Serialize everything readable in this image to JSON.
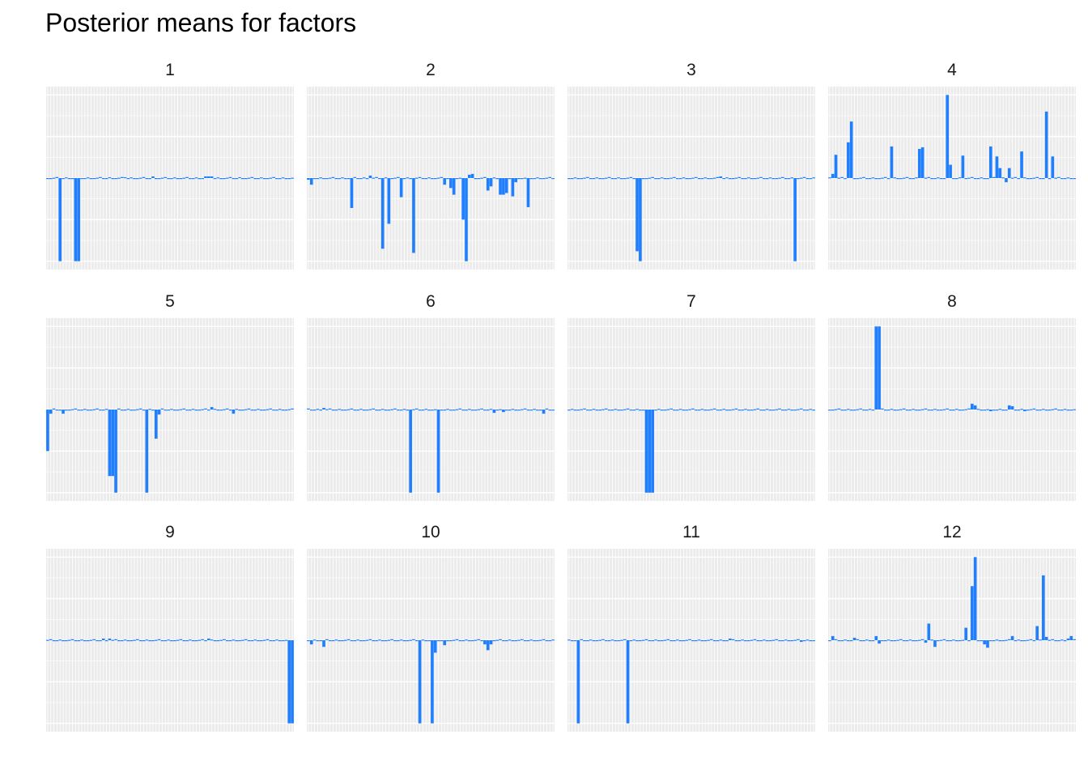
{
  "chart_data": {
    "type": "bar",
    "title": "Posterior means for factors",
    "xlabel": "",
    "ylabel": "",
    "grid": true,
    "legend": "none",
    "bar_color": "#1F7FFF",
    "panel_background": "#EBEBEB",
    "gridline_color": "#FFFFFF",
    "n_categories": 80,
    "facets": [
      {
        "label": "1",
        "ylim": [
          -1.1,
          1.1
        ],
        "bars": [
          [
            4,
            -1.0
          ],
          [
            9,
            -1.0
          ],
          [
            10,
            -1.0
          ],
          [
            20,
            0.01
          ],
          [
            25,
            0.01
          ],
          [
            34,
            0.02
          ],
          [
            51,
            0.02
          ],
          [
            52,
            0.02
          ],
          [
            53,
            0.02
          ],
          [
            62,
            0.01
          ]
        ]
      },
      {
        "label": "2",
        "ylim": [
          -1.1,
          1.1
        ],
        "bars": [
          [
            0,
            -0.02
          ],
          [
            1,
            -0.08
          ],
          [
            14,
            -0.36
          ],
          [
            20,
            0.03
          ],
          [
            24,
            -0.85
          ],
          [
            26,
            -0.55
          ],
          [
            30,
            -0.23
          ],
          [
            34,
            -0.9
          ],
          [
            44,
            -0.08
          ],
          [
            46,
            -0.12
          ],
          [
            47,
            -0.2
          ],
          [
            50,
            -0.5
          ],
          [
            51,
            -1.0
          ],
          [
            52,
            0.04
          ],
          [
            53,
            0.05
          ],
          [
            58,
            -0.15
          ],
          [
            59,
            -0.1
          ],
          [
            62,
            -0.2
          ],
          [
            63,
            -0.2
          ],
          [
            64,
            -0.18
          ],
          [
            66,
            -0.22
          ],
          [
            67,
            -0.05
          ],
          [
            71,
            -0.35
          ]
        ]
      },
      {
        "label": "3",
        "ylim": [
          -1.1,
          1.1
        ],
        "bars": [
          [
            22,
            -0.88
          ],
          [
            23,
            -1.0
          ],
          [
            49,
            0.02
          ],
          [
            73,
            -1.0
          ]
        ]
      },
      {
        "label": "4",
        "ylim": [
          -1.1,
          1.1
        ],
        "bars": [
          [
            1,
            0.05
          ],
          [
            2,
            0.28
          ],
          [
            6,
            0.43
          ],
          [
            7,
            0.68
          ],
          [
            20,
            0.38
          ],
          [
            29,
            0.35
          ],
          [
            30,
            0.37
          ],
          [
            38,
            1.0
          ],
          [
            39,
            0.16
          ],
          [
            43,
            0.27
          ],
          [
            52,
            0.38
          ],
          [
            54,
            0.26
          ],
          [
            55,
            0.12
          ],
          [
            57,
            -0.05
          ],
          [
            58,
            0.12
          ],
          [
            62,
            0.32
          ],
          [
            70,
            0.8
          ],
          [
            72,
            0.26
          ]
        ]
      },
      {
        "label": "5",
        "ylim": [
          -1.1,
          1.1
        ],
        "bars": [
          [
            0,
            -0.5
          ],
          [
            1,
            -0.05
          ],
          [
            5,
            -0.05
          ],
          [
            20,
            -0.8
          ],
          [
            21,
            -0.8
          ],
          [
            22,
            -1.0
          ],
          [
            32,
            -1.0
          ],
          [
            35,
            -0.35
          ],
          [
            36,
            -0.06
          ],
          [
            53,
            0.03
          ],
          [
            60,
            -0.05
          ]
        ]
      },
      {
        "label": "6",
        "ylim": [
          -1.1,
          1.1
        ],
        "bars": [
          [
            5,
            0.02
          ],
          [
            33,
            -1.0
          ],
          [
            42,
            -1.0
          ],
          [
            60,
            -0.04
          ],
          [
            63,
            -0.03
          ],
          [
            76,
            -0.05
          ]
        ]
      },
      {
        "label": "7",
        "ylim": [
          -1.1,
          1.1
        ],
        "bars": [
          [
            25,
            -1.0
          ],
          [
            26,
            -1.0
          ],
          [
            27,
            -1.0
          ]
        ]
      },
      {
        "label": "8",
        "ylim": [
          -1.1,
          1.1
        ],
        "bars": [
          [
            15,
            1.0
          ],
          [
            16,
            1.0
          ],
          [
            46,
            0.07
          ],
          [
            47,
            0.05
          ],
          [
            52,
            -0.02
          ],
          [
            58,
            0.05
          ],
          [
            59,
            0.04
          ],
          [
            63,
            -0.02
          ]
        ]
      },
      {
        "label": "9",
        "ylim": [
          -1.1,
          1.1
        ],
        "bars": [
          [
            18,
            0.02
          ],
          [
            20,
            0.02
          ],
          [
            52,
            0.02
          ],
          [
            78,
            -1.0
          ],
          [
            79,
            -1.0
          ]
        ]
      },
      {
        "label": "10",
        "ylim": [
          -1.1,
          1.1
        ],
        "bars": [
          [
            1,
            -0.05
          ],
          [
            5,
            -0.08
          ],
          [
            36,
            -1.0
          ],
          [
            40,
            -1.0
          ],
          [
            41,
            -0.15
          ],
          [
            44,
            -0.06
          ],
          [
            57,
            -0.05
          ],
          [
            58,
            -0.12
          ],
          [
            59,
            -0.05
          ]
        ]
      },
      {
        "label": "11",
        "ylim": [
          -1.1,
          1.1
        ],
        "bars": [
          [
            3,
            -1.0
          ],
          [
            19,
            -1.0
          ],
          [
            52,
            0.02
          ],
          [
            75,
            -0.02
          ]
        ]
      },
      {
        "label": "12",
        "ylim": [
          -1.1,
          1.1
        ],
        "bars": [
          [
            1,
            0.05
          ],
          [
            8,
            0.03
          ],
          [
            15,
            0.05
          ],
          [
            16,
            -0.04
          ],
          [
            31,
            -0.03
          ],
          [
            32,
            0.2
          ],
          [
            34,
            -0.08
          ],
          [
            44,
            0.15
          ],
          [
            46,
            0.65
          ],
          [
            47,
            1.0
          ],
          [
            50,
            -0.05
          ],
          [
            51,
            -0.09
          ],
          [
            59,
            0.05
          ],
          [
            67,
            0.17
          ],
          [
            69,
            0.78
          ],
          [
            70,
            0.04
          ],
          [
            77,
            0.02
          ],
          [
            78,
            0.05
          ]
        ]
      }
    ]
  }
}
